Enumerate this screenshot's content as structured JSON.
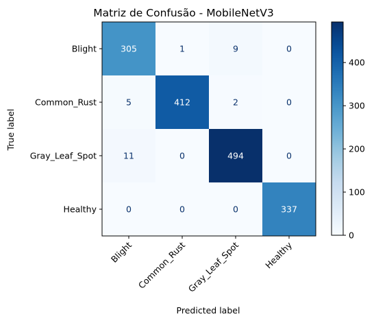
{
  "chart_data": {
    "type": "heatmap",
    "title": "Matriz de Confusão - MobileNetV3",
    "xlabel": "Predicted label",
    "ylabel": "True label",
    "x_categories": [
      "Blight",
      "Common_Rust",
      "Gray_Leaf_Spot",
      "Healthy"
    ],
    "y_categories": [
      "Blight",
      "Common_Rust",
      "Gray_Leaf_Spot",
      "Healthy"
    ],
    "values": [
      [
        305,
        1,
        9,
        0
      ],
      [
        5,
        412,
        2,
        0
      ],
      [
        11,
        0,
        494,
        0
      ],
      [
        0,
        0,
        0,
        337
      ]
    ],
    "colormap": "Blues",
    "color_range": [
      0,
      494
    ],
    "colorbar_ticks": [
      0,
      100,
      200,
      300,
      400
    ]
  }
}
